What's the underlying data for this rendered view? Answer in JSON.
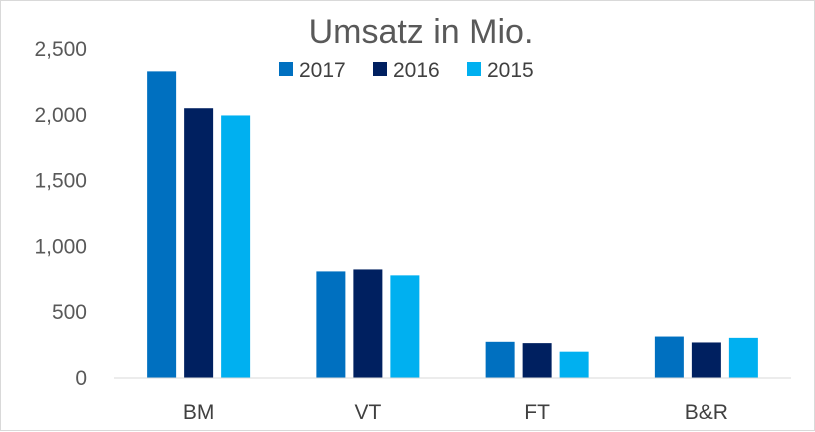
{
  "chart_data": {
    "type": "bar",
    "title": "Umsatz in Mio.",
    "categories": [
      "BM",
      "VT",
      "FT",
      "B&R"
    ],
    "series": [
      {
        "name": "2017",
        "color": "#0070C0",
        "values": [
          2330,
          810,
          275,
          315
        ]
      },
      {
        "name": "2016",
        "color": "#002060",
        "values": [
          2050,
          825,
          265,
          270
        ]
      },
      {
        "name": "2015",
        "color": "#00B0F0",
        "values": [
          1995,
          780,
          200,
          305
        ]
      }
    ],
    "y_ticks": [
      0,
      500,
      1000,
      1500,
      2000,
      2500
    ],
    "y_tick_labels": [
      "0",
      "500",
      "1,000",
      "1,500",
      "2,000",
      "2,500"
    ],
    "ylim": [
      0,
      2500
    ],
    "xlabel": "",
    "ylabel": "",
    "legend_position": "top",
    "grid": false
  }
}
